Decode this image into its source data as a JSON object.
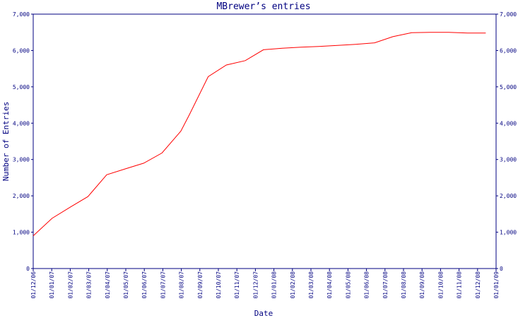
{
  "chart_data": {
    "type": "line",
    "title": "MBrewer’s entries",
    "xlabel": "Date",
    "ylabel": "Number of Entries",
    "ylim": [
      0,
      7000
    ],
    "yticks": [
      0,
      1000,
      2000,
      3000,
      4000,
      5000,
      6000,
      7000
    ],
    "ytick_labels": [
      "0",
      "1,000",
      "2,000",
      "3,000",
      "4,000",
      "5,000",
      "6,000",
      "7,000"
    ],
    "xtick_labels": [
      "01/12/06",
      "01/01/07",
      "01/02/07",
      "01/03/07",
      "01/04/07",
      "01/05/07",
      "01/06/07",
      "01/07/07",
      "01/08/07",
      "01/09/07",
      "01/10/07",
      "01/11/07",
      "01/12/07",
      "01/01/08",
      "01/02/08",
      "01/03/08",
      "01/04/08",
      "01/05/08",
      "01/06/08",
      "01/07/08",
      "01/08/08",
      "01/09/08",
      "01/10/08",
      "01/11/08",
      "01/12/08",
      "01/01/09"
    ],
    "right_axis": true,
    "grid": false,
    "colors": {
      "line": "#ff0000",
      "axis": "#000080",
      "text": "#000080"
    },
    "series": [
      {
        "x": [
          "2006-12-01",
          "2007-01-01",
          "2007-02-01",
          "2007-03-01",
          "2007-04-01",
          "2007-05-01",
          "2007-06-01",
          "2007-07-01",
          "2007-08-01",
          "2007-08-15",
          "2007-09-15",
          "2007-10-15",
          "2007-11-15",
          "2007-12-15",
          "2008-01-15",
          "2008-02-15",
          "2008-03-15",
          "2008-04-15",
          "2008-05-15",
          "2008-06-15",
          "2008-07-15",
          "2008-08-15",
          "2008-09-15",
          "2008-10-15",
          "2008-11-15",
          "2008-12-15"
        ],
        "y": [
          900,
          1380,
          1700,
          1980,
          2580,
          2740,
          2900,
          3180,
          3780,
          4230,
          5280,
          5600,
          5720,
          6020,
          6060,
          6090,
          6110,
          6140,
          6170,
          6210,
          6380,
          6490,
          6500,
          6500,
          6480,
          6480
        ]
      }
    ]
  }
}
